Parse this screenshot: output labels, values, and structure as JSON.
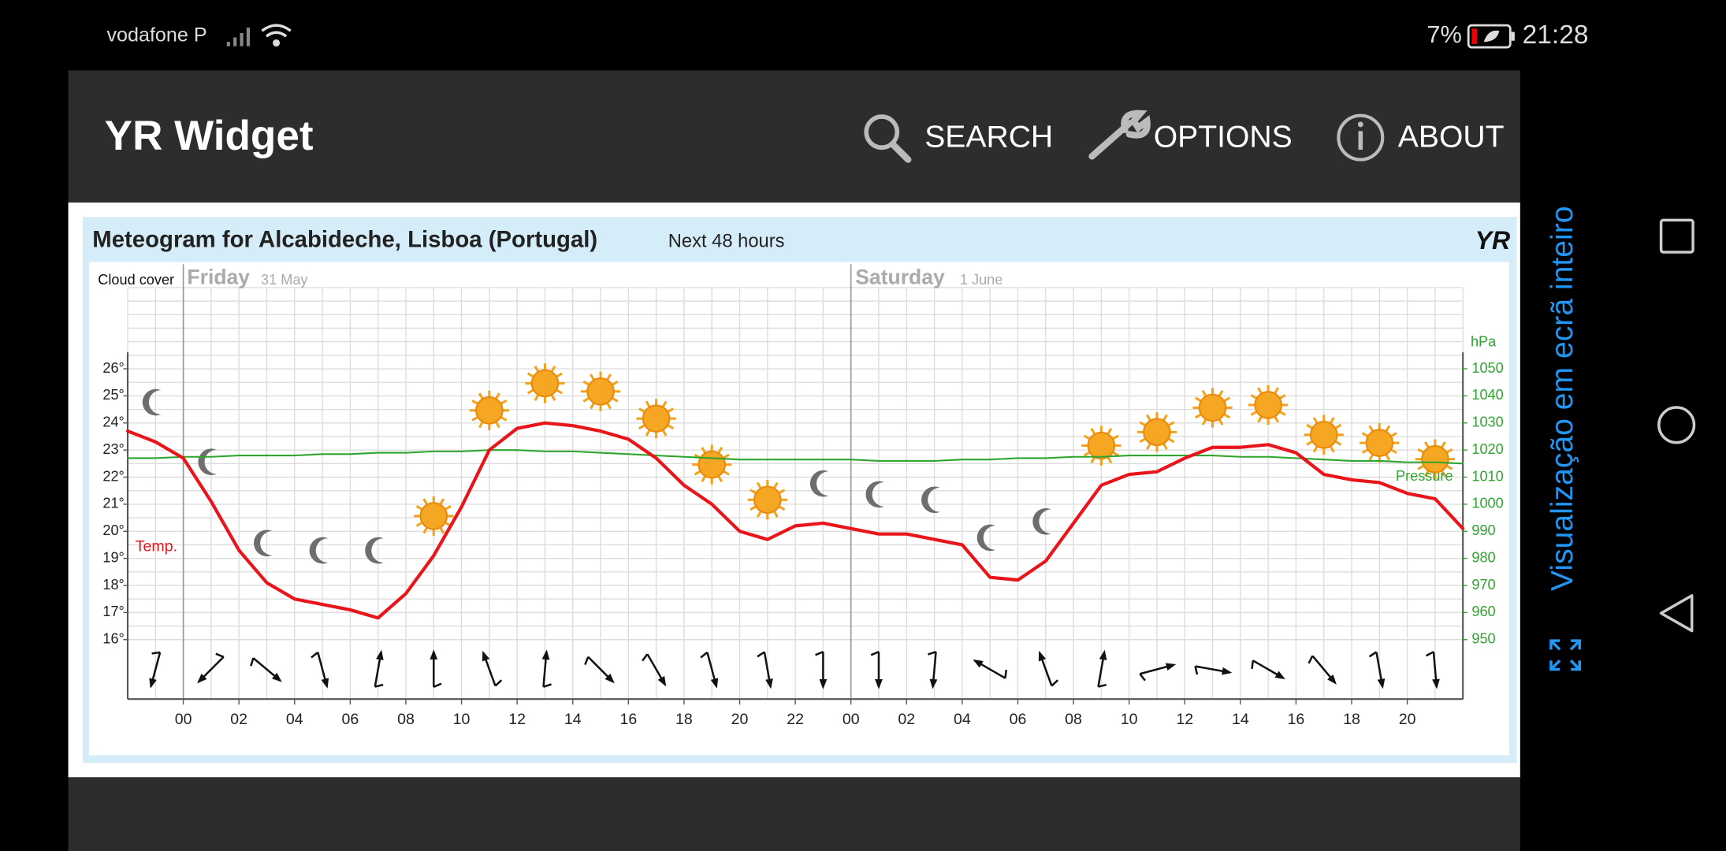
{
  "status_bar": {
    "carrier": "vodafone P",
    "battery": "7%",
    "time": "21:28"
  },
  "app_bar": {
    "title": "YR Widget",
    "actions": [
      "SEARCH",
      "OPTIONS",
      "ABOUT"
    ]
  },
  "side_panel": {
    "fullscreen": "Visualização em ecrã inteiro"
  },
  "meteogram": {
    "logo": "YR",
    "cloud_cover_label": "Cloud cover",
    "days": [
      {
        "name": "Friday",
        "date": "31 May"
      },
      {
        "name": "Saturday",
        "date": "1 June"
      }
    ]
  },
  "chart_data": {
    "type": "line",
    "title": "Meteogram for Alcabideche, Lisboa (Portugal)",
    "subtitle": "Next 48 hours",
    "categories": [
      null,
      null,
      "00",
      null,
      "02",
      null,
      "04",
      null,
      "06",
      null,
      "08",
      null,
      "10",
      null,
      "12",
      null,
      "14",
      null,
      "16",
      null,
      "18",
      null,
      "20",
      null,
      "22",
      null,
      "00",
      null,
      "02",
      null,
      "04",
      null,
      "06",
      null,
      "08",
      null,
      "10",
      null,
      "12",
      null,
      "14",
      null,
      "16",
      null,
      "18",
      null,
      "20",
      null,
      null
    ],
    "series": [
      {
        "name": "Temp.",
        "color": "#e8161b",
        "values": [
          23.7,
          23.3,
          22.7,
          21.1,
          19.3,
          18.1,
          17.5,
          17.3,
          17.1,
          16.8,
          17.7,
          19.1,
          20.9,
          23.0,
          23.8,
          24.0,
          23.9,
          23.7,
          23.4,
          22.7,
          21.7,
          21.0,
          20.0,
          19.7,
          20.2,
          20.3,
          20.1,
          19.9,
          19.9,
          19.7,
          19.5,
          18.3,
          18.2,
          18.9,
          20.3,
          21.7,
          22.1,
          22.2,
          22.7,
          23.1,
          23.1,
          23.2,
          22.9,
          22.1,
          21.9,
          21.8,
          21.4,
          21.2,
          20.1
        ]
      },
      {
        "name": "Pressure",
        "color": "#2ea52e",
        "axis": "y2",
        "values": [
          1017,
          1017,
          1017.5,
          1017.5,
          1018,
          1018,
          1018,
          1018.5,
          1018.5,
          1019,
          1019,
          1019.5,
          1019.5,
          1020,
          1020,
          1019.5,
          1019.5,
          1019,
          1018.5,
          1018,
          1017.5,
          1017,
          1016.5,
          1016.5,
          1016.5,
          1016.5,
          1016.5,
          1016,
          1016,
          1016,
          1016.5,
          1016.5,
          1017,
          1017,
          1017.5,
          1017.5,
          1018,
          1018,
          1018,
          1018,
          1017.5,
          1017.5,
          1017,
          1016.5,
          1016,
          1016,
          1015.5,
          1015.5,
          1015
        ]
      }
    ],
    "ylim": [
      16,
      26
    ],
    "yticks": [
      {
        "value": 16,
        "label": "16°"
      },
      {
        "value": 17,
        "label": "17°"
      },
      {
        "value": 18,
        "label": "18°"
      },
      {
        "value": 19,
        "label": "19°"
      },
      {
        "value": 20,
        "label": "20°"
      },
      {
        "value": 21,
        "label": "21°"
      },
      {
        "value": 22,
        "label": "22°"
      },
      {
        "value": 23,
        "label": "23°"
      },
      {
        "value": 24,
        "label": "24°"
      },
      {
        "value": 25,
        "label": "25°"
      },
      {
        "value": 26,
        "label": "26°"
      }
    ],
    "y2lim": [
      950,
      1050
    ],
    "y2ticks": [
      950,
      960,
      970,
      980,
      990,
      1000,
      1010,
      1020,
      1030,
      1040,
      1050
    ],
    "y2label": "hPa",
    "grid": true
  }
}
